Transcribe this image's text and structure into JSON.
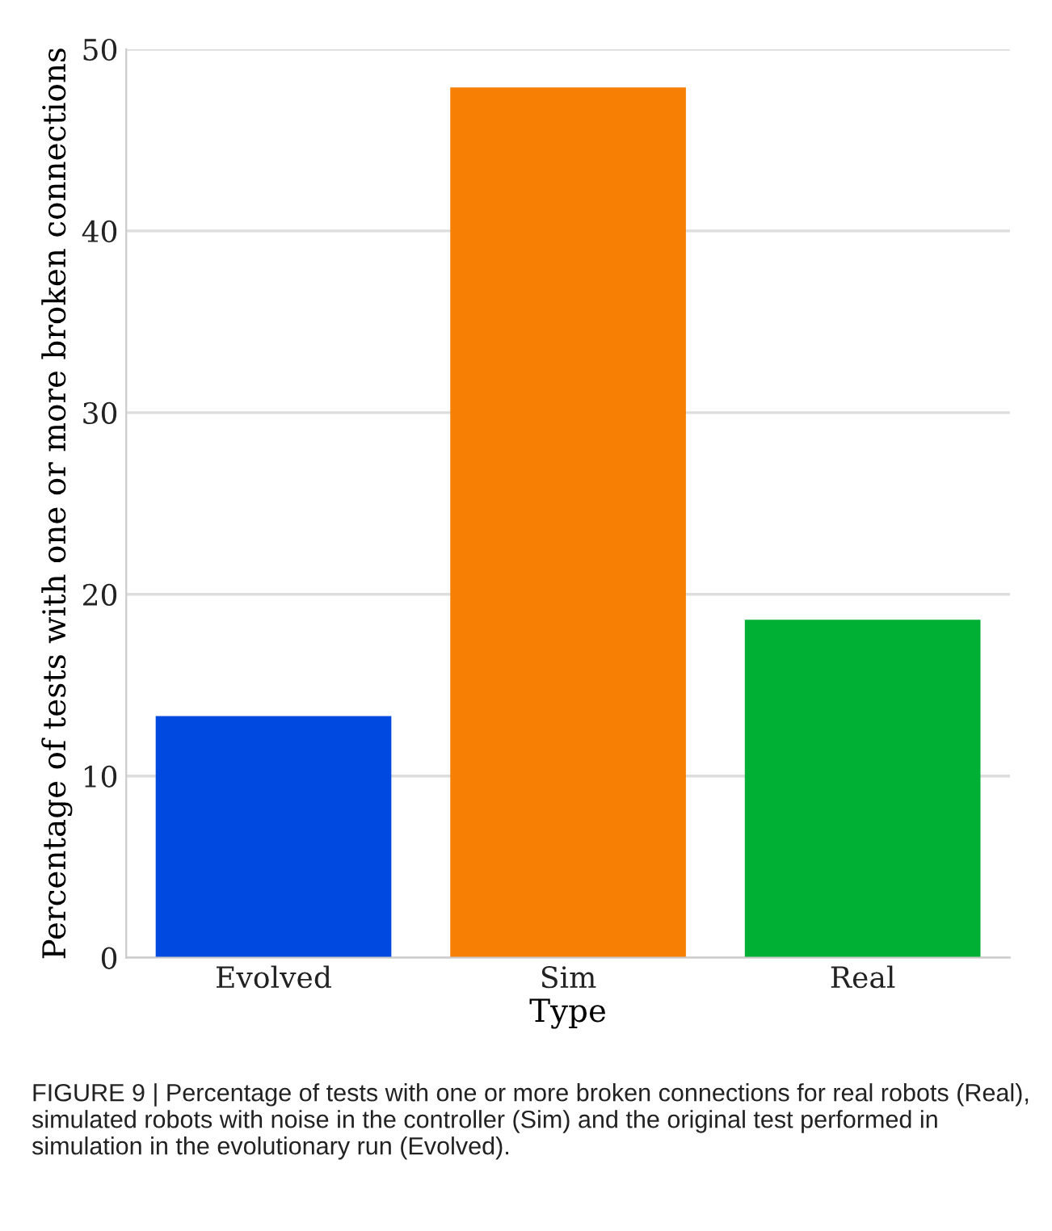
{
  "chart_data": {
    "type": "bar",
    "xlabel": "Type",
    "ylabel": "Percentage of tests with one or more broken connections",
    "categories": [
      "Evolved",
      "Sim",
      "Real"
    ],
    "values": [
      13.3,
      47.9,
      18.6
    ],
    "colors": [
      "#0049e0",
      "#f77f04",
      "#00b035"
    ],
    "ylim": [
      0,
      50
    ],
    "yticks": [
      0,
      10,
      20,
      30,
      40,
      50
    ],
    "grid": "y",
    "annotations": [
      "FIGURE 9 | Percentage of tests with one or more broken connections for real robots (Real), simulated robots with noise in the controller (Sim) and the original test performed in simulation in the evolutionary run (Evolved)."
    ]
  }
}
